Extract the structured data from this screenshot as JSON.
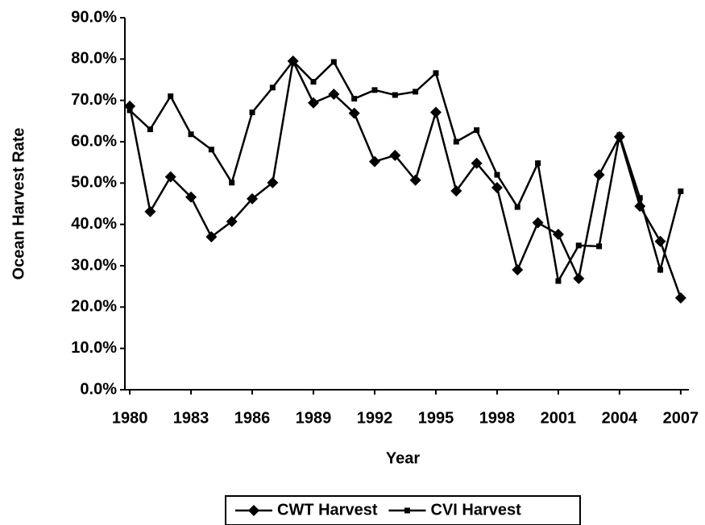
{
  "chart_data": {
    "type": "line",
    "x_label": "Year",
    "y_label": "Ocean Harvest Rate",
    "x": [
      1980,
      1981,
      1982,
      1983,
      1984,
      1985,
      1986,
      1987,
      1988,
      1989,
      1990,
      1991,
      1992,
      1993,
      1994,
      1995,
      1996,
      1997,
      1998,
      1999,
      2000,
      2001,
      2002,
      2003,
      2004,
      2005,
      2006,
      2007
    ],
    "series": [
      {
        "name": "CWT Harvest",
        "color": "#000000",
        "marker": "diamond",
        "values": [
          68.6,
          43.1,
          51.5,
          46.6,
          37.0,
          40.7,
          46.2,
          50.1,
          79.5,
          69.4,
          71.5,
          66.9,
          55.2,
          56.7,
          50.7,
          67.1,
          48.1,
          54.8,
          48.9,
          29.0,
          40.4,
          37.6,
          26.9,
          52.0,
          61.2,
          44.4,
          35.9,
          22.2
        ]
      },
      {
        "name": "CVI Harvest",
        "color": "#000000",
        "marker": "square",
        "values": [
          67.6,
          63.0,
          71.0,
          61.8,
          58.1,
          50.1,
          67.1,
          73.1,
          79.5,
          74.5,
          79.3,
          70.4,
          72.5,
          71.3,
          72.1,
          76.6,
          60.0,
          62.8,
          52.0,
          44.2,
          54.8,
          26.3,
          34.9,
          34.7,
          61.6,
          46.4,
          29.0,
          48.0
        ]
      }
    ],
    "xlim": [
      1979.76,
      2007.4
    ],
    "xticks": [
      1980,
      1983,
      1986,
      1989,
      1992,
      1995,
      1998,
      2001,
      2004,
      2007
    ],
    "ylim": [
      0,
      90
    ],
    "yticks": [
      {
        "value": 0,
        "label": "0.0%"
      },
      {
        "value": 10,
        "label": "10.0%"
      },
      {
        "value": 20,
        "label": "20.0%"
      },
      {
        "value": 30,
        "label": "30.0%"
      },
      {
        "value": 40,
        "label": "40.0%"
      },
      {
        "value": 50,
        "label": "50.0%"
      },
      {
        "value": 60,
        "label": "60.0%"
      },
      {
        "value": 70,
        "label": "70.0%"
      },
      {
        "value": 80,
        "label": "80.0%"
      },
      {
        "value": 90,
        "label": "90.0%"
      }
    ],
    "grid": false,
    "legend": "bottom"
  }
}
